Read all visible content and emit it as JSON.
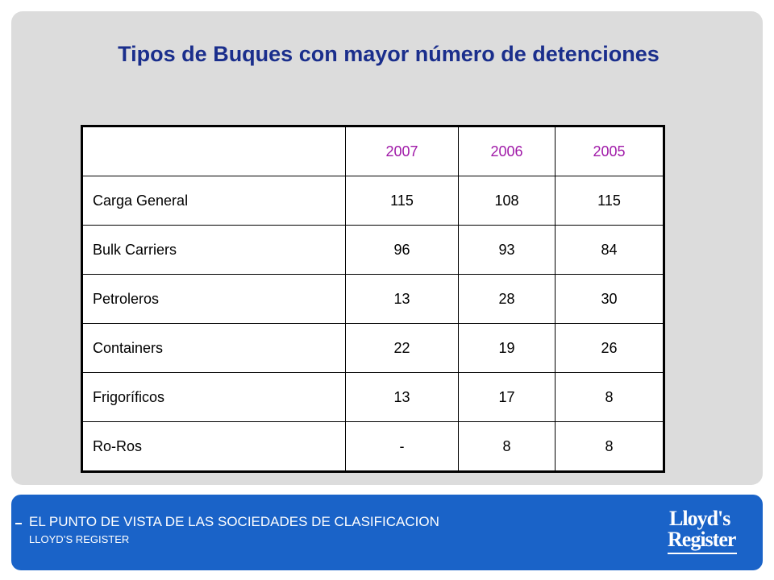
{
  "slide": {
    "title": "Tipos de Buques con mayor número de detenciones"
  },
  "table": {
    "header": [
      "",
      "2007",
      "2006",
      "2005"
    ],
    "rows": [
      {
        "label": "Carga General",
        "values": [
          "115",
          "108",
          "115"
        ]
      },
      {
        "label": "Bulk Carriers",
        "values": [
          "96",
          "93",
          "84"
        ]
      },
      {
        "label": "Petroleros",
        "values": [
          "13",
          "28",
          "30"
        ]
      },
      {
        "label": "Containers",
        "values": [
          "22",
          "19",
          "26"
        ]
      },
      {
        "label": "Frigoríficos",
        "values": [
          "13",
          "17",
          "8"
        ]
      },
      {
        "label": "Ro-Ros",
        "values": [
          "-",
          "8",
          "8"
        ]
      }
    ]
  },
  "footer": {
    "title": "EL PUNTO DE VISTA DE LAS SOCIEDADES DE CLASIFICACION",
    "subtitle": "LLOYD’S REGISTER",
    "logo_line1": "Lloyd's",
    "logo_line2": "Register"
  },
  "colors": {
    "title": "#1a2e8c",
    "year_header": "#a01aa8",
    "footer_bg": "#1a63c8",
    "panel_bg": "#dcdcdc"
  }
}
